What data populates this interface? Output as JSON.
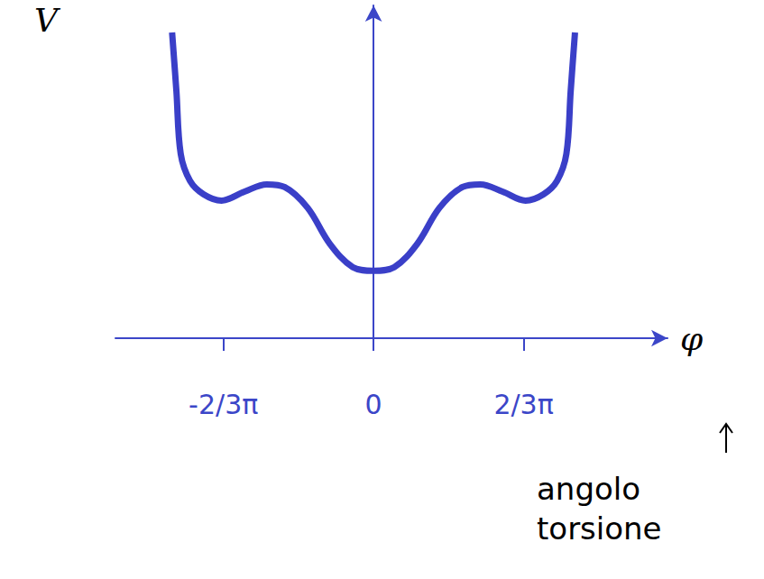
{
  "chart_data": {
    "type": "line",
    "x_label": "φ",
    "y_label": "V",
    "annotation": "angolo torsione",
    "x": [
      -2.81,
      -2.75,
      -2.69,
      -2.56,
      -2.37,
      -2.12,
      -1.8,
      -1.49,
      -1.24,
      -0.92,
      -0.61,
      -0.29,
      0,
      0.29,
      0.61,
      0.92,
      1.24,
      1.49,
      1.8,
      2.12,
      2.37,
      2.56,
      2.69,
      2.75,
      2.81
    ],
    "values": [
      34.0,
      27.5,
      20.5,
      17.5,
      16.0,
      15.3,
      16.3,
      17.1,
      16.8,
      14.5,
      10.5,
      7.9,
      7.5,
      7.9,
      10.5,
      14.5,
      16.8,
      17.1,
      16.3,
      15.3,
      16.0,
      17.5,
      20.5,
      27.5,
      34.0
    ],
    "color": "#3a3fc8",
    "xlim": [
      -3.6,
      4.1
    ],
    "ylim": [
      0,
      37
    ],
    "xticks": [
      {
        "value": -2.094,
        "label": "-2/3π"
      },
      0,
      {
        "value": 2.094,
        "label": "2/3π"
      }
    ],
    "yticks": [],
    "tick_labels": "x",
    "grid": false
  }
}
